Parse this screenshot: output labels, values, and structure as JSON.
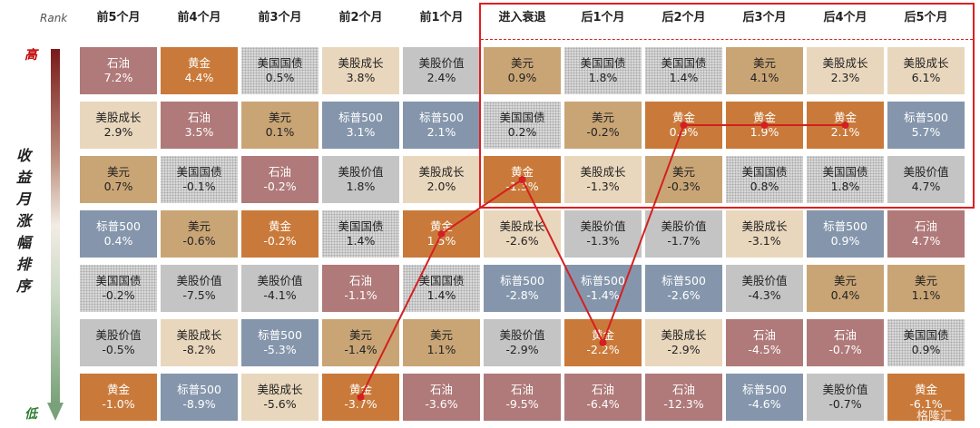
{
  "chart_data": {
    "type": "table",
    "rank_label": "Rank",
    "y_axis_label": [
      "收",
      "益",
      "月",
      "涨",
      "幅",
      "排",
      "序"
    ],
    "high_label": "高",
    "low_label": "低",
    "columns": [
      "前5个月",
      "前4个月",
      "前3个月",
      "前2个月",
      "前1个月",
      "进入衰退",
      "后1个月",
      "后2个月",
      "后3个月",
      "后4个月",
      "后5个月"
    ],
    "rows": [
      [
        {
          "n": "石油",
          "v": "7.2%"
        },
        {
          "n": "黄金",
          "v": "4.4%"
        },
        {
          "n": "美国国债",
          "v": "0.5%"
        },
        {
          "n": "美股成长",
          "v": "3.8%"
        },
        {
          "n": "美股价值",
          "v": "2.4%"
        },
        {
          "n": "美元",
          "v": "0.9%"
        },
        {
          "n": "美国国债",
          "v": "1.8%"
        },
        {
          "n": "美国国债",
          "v": "1.4%"
        },
        {
          "n": "美元",
          "v": "4.1%"
        },
        {
          "n": "美股成长",
          "v": "2.3%"
        },
        {
          "n": "美股成长",
          "v": "6.1%"
        }
      ],
      [
        {
          "n": "美股成长",
          "v": "2.9%"
        },
        {
          "n": "石油",
          "v": "3.5%"
        },
        {
          "n": "美元",
          "v": "0.1%"
        },
        {
          "n": "标普500",
          "v": "3.1%"
        },
        {
          "n": "标普500",
          "v": "2.1%"
        },
        {
          "n": "美国国债",
          "v": "0.2%"
        },
        {
          "n": "美元",
          "v": "-0.2%"
        },
        {
          "n": "黄金",
          "v": "0.9%"
        },
        {
          "n": "黄金",
          "v": "1.9%"
        },
        {
          "n": "黄金",
          "v": "2.1%"
        },
        {
          "n": "标普500",
          "v": "5.7%"
        }
      ],
      [
        {
          "n": "美元",
          "v": "0.7%"
        },
        {
          "n": "美国国债",
          "v": "-0.1%"
        },
        {
          "n": "石油",
          "v": "-0.2%"
        },
        {
          "n": "美股价值",
          "v": "1.8%"
        },
        {
          "n": "美股成长",
          "v": "2.0%"
        },
        {
          "n": "黄金",
          "v": "-1.3%"
        },
        {
          "n": "美股成长",
          "v": "-1.3%"
        },
        {
          "n": "美元",
          "v": "-0.3%"
        },
        {
          "n": "美国国债",
          "v": "0.8%"
        },
        {
          "n": "美国国债",
          "v": "1.8%"
        },
        {
          "n": "美股价值",
          "v": "4.7%"
        }
      ],
      [
        {
          "n": "标普500",
          "v": "0.4%"
        },
        {
          "n": "美元",
          "v": "-0.6%"
        },
        {
          "n": "黄金",
          "v": "-0.2%"
        },
        {
          "n": "美国国债",
          "v": "1.4%"
        },
        {
          "n": "黄金",
          "v": "1.5%"
        },
        {
          "n": "美股成长",
          "v": "-2.6%"
        },
        {
          "n": "美股价值",
          "v": "-1.3%"
        },
        {
          "n": "美股价值",
          "v": "-1.7%"
        },
        {
          "n": "美股成长",
          "v": "-3.1%"
        },
        {
          "n": "标普500",
          "v": "0.9%"
        },
        {
          "n": "石油",
          "v": "4.7%"
        }
      ],
      [
        {
          "n": "美国国债",
          "v": "-0.2%"
        },
        {
          "n": "美股价值",
          "v": "-7.5%"
        },
        {
          "n": "美股价值",
          "v": "-4.1%"
        },
        {
          "n": "石油",
          "v": "-1.1%"
        },
        {
          "n": "美国国债",
          "v": "1.4%"
        },
        {
          "n": "标普500",
          "v": "-2.8%"
        },
        {
          "n": "标普500",
          "v": "-1.4%"
        },
        {
          "n": "标普500",
          "v": "-2.6%"
        },
        {
          "n": "美股价值",
          "v": "-4.3%"
        },
        {
          "n": "美元",
          "v": "0.4%"
        },
        {
          "n": "美元",
          "v": "1.1%"
        }
      ],
      [
        {
          "n": "美股价值",
          "v": "-0.5%"
        },
        {
          "n": "美股成长",
          "v": "-8.2%"
        },
        {
          "n": "标普500",
          "v": "-5.3%"
        },
        {
          "n": "美元",
          "v": "-1.4%"
        },
        {
          "n": "美元",
          "v": "1.1%"
        },
        {
          "n": "美股价值",
          "v": "-2.9%"
        },
        {
          "n": "黄金",
          "v": "-2.2%"
        },
        {
          "n": "美股成长",
          "v": "-2.9%"
        },
        {
          "n": "石油",
          "v": "-4.5%"
        },
        {
          "n": "石油",
          "v": "-0.7%"
        },
        {
          "n": "美国国债",
          "v": "0.9%"
        }
      ],
      [
        {
          "n": "黄金",
          "v": "-1.0%"
        },
        {
          "n": "标普500",
          "v": "-8.9%"
        },
        {
          "n": "美股成长",
          "v": "-5.6%"
        },
        {
          "n": "黄金",
          "v": "-3.7%"
        },
        {
          "n": "石油",
          "v": "-3.6%"
        },
        {
          "n": "石油",
          "v": "-9.5%"
        },
        {
          "n": "石油",
          "v": "-6.4%"
        },
        {
          "n": "石油",
          "v": "-12.3%"
        },
        {
          "n": "标普500",
          "v": "-4.6%"
        },
        {
          "n": "美股价值",
          "v": "-0.7%"
        },
        {
          "n": "黄金",
          "v": "-6.1%"
        }
      ]
    ],
    "colors": {
      "石油": "c-oil",
      "黄金": "c-gold",
      "美元": "c-usd",
      "美股成长": "c-grow",
      "美股价值": "c-val",
      "标普500": "c-sp",
      "美国国债": "c-tsy"
    },
    "gold_path": {
      "series": "黄金",
      "ranks": [
        null,
        null,
        null,
        7,
        4,
        3,
        6,
        2,
        2,
        2,
        null
      ],
      "color": "#d42020"
    },
    "highlight": {
      "from_column": "进入衰退",
      "to_column": "后5个月",
      "top_rows": 3,
      "color": "#e01f1f"
    },
    "watermark": "格隆汇"
  }
}
